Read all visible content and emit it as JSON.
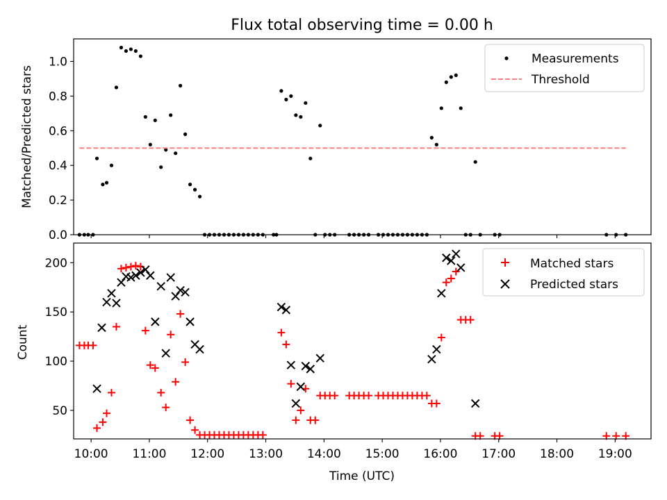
{
  "chart_data": [
    {
      "type": "scatter",
      "title": "Flux total observing time = 0.00 h",
      "xlabel": "",
      "ylabel": "Matched/Predicted stars",
      "xlim": [
        "09:42",
        "19:37"
      ],
      "ylim": [
        0,
        1.13
      ],
      "xticks": [
        "10:00",
        "11:00",
        "12:00",
        "13:00",
        "14:00",
        "15:00",
        "16:00",
        "17:00",
        "18:00",
        "19:00"
      ],
      "yticks": [
        "0.0",
        "0.2",
        "0.4",
        "0.6",
        "0.8",
        "1.0"
      ],
      "legend_position": "top-right",
      "grid": false,
      "series": [
        {
          "name": "Measurements",
          "marker": "dot",
          "color": "#000000",
          "points": [
            [
              "09:48",
              0
            ],
            [
              "09:53",
              0
            ],
            [
              "09:57",
              0
            ],
            [
              "10:02",
              0
            ],
            [
              "10:06",
              0.44
            ],
            [
              "10:12",
              0.29
            ],
            [
              "10:16",
              0.3
            ],
            [
              "10:21",
              0.4
            ],
            [
              "10:26",
              0.85
            ],
            [
              "10:31",
              1.08
            ],
            [
              "10:36",
              1.06
            ],
            [
              "10:41",
              1.07
            ],
            [
              "10:46",
              1.06
            ],
            [
              "10:51",
              1.03
            ],
            [
              "10:56",
              0.68
            ],
            [
              "11:01",
              0.52
            ],
            [
              "11:06",
              0.66
            ],
            [
              "11:12",
              0.39
            ],
            [
              "11:17",
              0.49
            ],
            [
              "11:22",
              0.69
            ],
            [
              "11:27",
              0.47
            ],
            [
              "11:32",
              0.86
            ],
            [
              "11:37",
              0.58
            ],
            [
              "11:42",
              0.29
            ],
            [
              "11:47",
              0.26
            ],
            [
              "11:52",
              0.22
            ],
            [
              "11:57",
              0
            ],
            [
              "12:02",
              0
            ],
            [
              "12:07",
              0
            ],
            [
              "12:12",
              0
            ],
            [
              "12:17",
              0
            ],
            [
              "12:22",
              0
            ],
            [
              "12:27",
              0
            ],
            [
              "12:32",
              0
            ],
            [
              "12:37",
              0
            ],
            [
              "12:42",
              0
            ],
            [
              "12:47",
              0
            ],
            [
              "12:52",
              0
            ],
            [
              "12:57",
              0
            ],
            [
              "13:08",
              0
            ],
            [
              "13:11",
              0
            ],
            [
              "13:16",
              0.83
            ],
            [
              "13:21",
              0.78
            ],
            [
              "13:26",
              0.8
            ],
            [
              "13:31",
              0.69
            ],
            [
              "13:36",
              0.68
            ],
            [
              "13:41",
              0.76
            ],
            [
              "13:46",
              0.44
            ],
            [
              "13:51",
              0
            ],
            [
              "13:56",
              0.63
            ],
            [
              "14:01",
              0
            ],
            [
              "14:06",
              0
            ],
            [
              "14:11",
              0
            ],
            [
              "14:26",
              0
            ],
            [
              "14:31",
              0
            ],
            [
              "14:36",
              0
            ],
            [
              "14:41",
              0
            ],
            [
              "14:46",
              0
            ],
            [
              "14:56",
              0
            ],
            [
              "15:01",
              0
            ],
            [
              "15:06",
              0
            ],
            [
              "15:11",
              0
            ],
            [
              "15:16",
              0
            ],
            [
              "15:21",
              0
            ],
            [
              "15:26",
              0
            ],
            [
              "15:31",
              0
            ],
            [
              "15:36",
              0
            ],
            [
              "15:41",
              0
            ],
            [
              "15:46",
              0
            ],
            [
              "15:51",
              0.56
            ],
            [
              "15:56",
              0.52
            ],
            [
              "16:01",
              0.73
            ],
            [
              "16:06",
              0.88
            ],
            [
              "16:11",
              0.91
            ],
            [
              "16:16",
              0.92
            ],
            [
              "16:21",
              0.73
            ],
            [
              "16:26",
              0
            ],
            [
              "16:31",
              0
            ],
            [
              "16:36",
              0.42
            ],
            [
              "16:41",
              0
            ],
            [
              "16:56",
              0
            ],
            [
              "17:01",
              0
            ],
            [
              "18:51",
              0
            ],
            [
              "19:01",
              0
            ],
            [
              "19:11",
              0
            ]
          ]
        },
        {
          "name": "Threshold",
          "marker": "dashed-line",
          "color": "#ff7f7f",
          "points": [
            [
              "09:48",
              0.5
            ],
            [
              "19:11",
              0.5
            ]
          ]
        }
      ]
    },
    {
      "type": "scatter",
      "title": "",
      "xlabel": "Time (UTC)",
      "ylabel": "Count",
      "xlim": [
        "09:42",
        "19:37"
      ],
      "ylim": [
        21,
        220
      ],
      "xticks": [
        "10:00",
        "11:00",
        "12:00",
        "13:00",
        "14:00",
        "15:00",
        "16:00",
        "17:00",
        "18:00",
        "19:00"
      ],
      "yticks": [
        "50",
        "100",
        "150",
        "200"
      ],
      "legend_position": "top-right",
      "grid": false,
      "series": [
        {
          "name": "Matched stars",
          "marker": "plus",
          "color": "#ff0000",
          "points": [
            [
              "09:48",
              116
            ],
            [
              "09:53",
              116
            ],
            [
              "09:57",
              116
            ],
            [
              "10:02",
              116
            ],
            [
              "10:06",
              32
            ],
            [
              "10:12",
              38
            ],
            [
              "10:16",
              47
            ],
            [
              "10:21",
              68
            ],
            [
              "10:26",
              135
            ],
            [
              "10:31",
              194
            ],
            [
              "10:36",
              195
            ],
            [
              "10:41",
              196
            ],
            [
              "10:46",
              197
            ],
            [
              "10:51",
              196
            ],
            [
              "10:56",
              131
            ],
            [
              "11:01",
              96
            ],
            [
              "11:06",
              93
            ],
            [
              "11:12",
              68
            ],
            [
              "11:17",
              53
            ],
            [
              "11:22",
              127
            ],
            [
              "11:27",
              79
            ],
            [
              "11:32",
              148
            ],
            [
              "11:37",
              99
            ],
            [
              "11:42",
              40
            ],
            [
              "11:47",
              30
            ],
            [
              "11:52",
              25
            ],
            [
              "11:57",
              25
            ],
            [
              "12:02",
              25
            ],
            [
              "12:07",
              25
            ],
            [
              "12:12",
              25
            ],
            [
              "12:17",
              25
            ],
            [
              "12:22",
              25
            ],
            [
              "12:27",
              25
            ],
            [
              "12:32",
              25
            ],
            [
              "12:37",
              25
            ],
            [
              "12:42",
              25
            ],
            [
              "12:47",
              25
            ],
            [
              "12:52",
              25
            ],
            [
              "12:57",
              25
            ],
            [
              "13:16",
              129
            ],
            [
              "13:21",
              117
            ],
            [
              "13:26",
              77
            ],
            [
              "13:31",
              40
            ],
            [
              "13:36",
              50
            ],
            [
              "13:41",
              72
            ],
            [
              "13:46",
              40
            ],
            [
              "13:51",
              40
            ],
            [
              "13:56",
              65
            ],
            [
              "14:01",
              65
            ],
            [
              "14:06",
              65
            ],
            [
              "14:11",
              65
            ],
            [
              "14:26",
              65
            ],
            [
              "14:31",
              65
            ],
            [
              "14:36",
              65
            ],
            [
              "14:41",
              65
            ],
            [
              "14:46",
              65
            ],
            [
              "14:56",
              65
            ],
            [
              "15:01",
              65
            ],
            [
              "15:06",
              65
            ],
            [
              "15:11",
              65
            ],
            [
              "15:16",
              65
            ],
            [
              "15:21",
              65
            ],
            [
              "15:26",
              65
            ],
            [
              "15:31",
              65
            ],
            [
              "15:36",
              65
            ],
            [
              "15:41",
              65
            ],
            [
              "15:46",
              65
            ],
            [
              "15:51",
              57
            ],
            [
              "15:56",
              57
            ],
            [
              "16:01",
              124
            ],
            [
              "16:06",
              180
            ],
            [
              "16:11",
              184
            ],
            [
              "16:16",
              191
            ],
            [
              "16:21",
              142
            ],
            [
              "16:26",
              142
            ],
            [
              "16:31",
              142
            ],
            [
              "16:36",
              24
            ],
            [
              "16:41",
              24
            ],
            [
              "16:56",
              24
            ],
            [
              "17:01",
              24
            ],
            [
              "18:51",
              24
            ],
            [
              "19:01",
              24
            ],
            [
              "19:11",
              24
            ]
          ]
        },
        {
          "name": "Predicted stars",
          "marker": "x",
          "color": "#000000",
          "points": [
            [
              "10:06",
              72
            ],
            [
              "10:11",
              134
            ],
            [
              "10:16",
              160
            ],
            [
              "10:21",
              169
            ],
            [
              "10:26",
              159
            ],
            [
              "10:31",
              180
            ],
            [
              "10:36",
              186
            ],
            [
              "10:41",
              185
            ],
            [
              "10:46",
              187
            ],
            [
              "10:51",
              190
            ],
            [
              "10:56",
              193
            ],
            [
              "11:01",
              187
            ],
            [
              "11:06",
              140
            ],
            [
              "11:12",
              176
            ],
            [
              "11:17",
              108
            ],
            [
              "11:22",
              185
            ],
            [
              "11:27",
              166
            ],
            [
              "11:32",
              172
            ],
            [
              "11:37",
              170
            ],
            [
              "11:42",
              140
            ],
            [
              "11:47",
              117
            ],
            [
              "11:52",
              112
            ],
            [
              "13:16",
              155
            ],
            [
              "13:21",
              152
            ],
            [
              "13:26",
              96
            ],
            [
              "13:31",
              57
            ],
            [
              "13:36",
              74
            ],
            [
              "13:41",
              95
            ],
            [
              "13:46",
              92
            ],
            [
              "13:56",
              103
            ],
            [
              "15:51",
              102
            ],
            [
              "15:56",
              112
            ],
            [
              "16:01",
              169
            ],
            [
              "16:06",
              205
            ],
            [
              "16:11",
              202
            ],
            [
              "16:16",
              209
            ],
            [
              "16:21",
              195
            ],
            [
              "16:36",
              57
            ]
          ]
        }
      ]
    }
  ]
}
